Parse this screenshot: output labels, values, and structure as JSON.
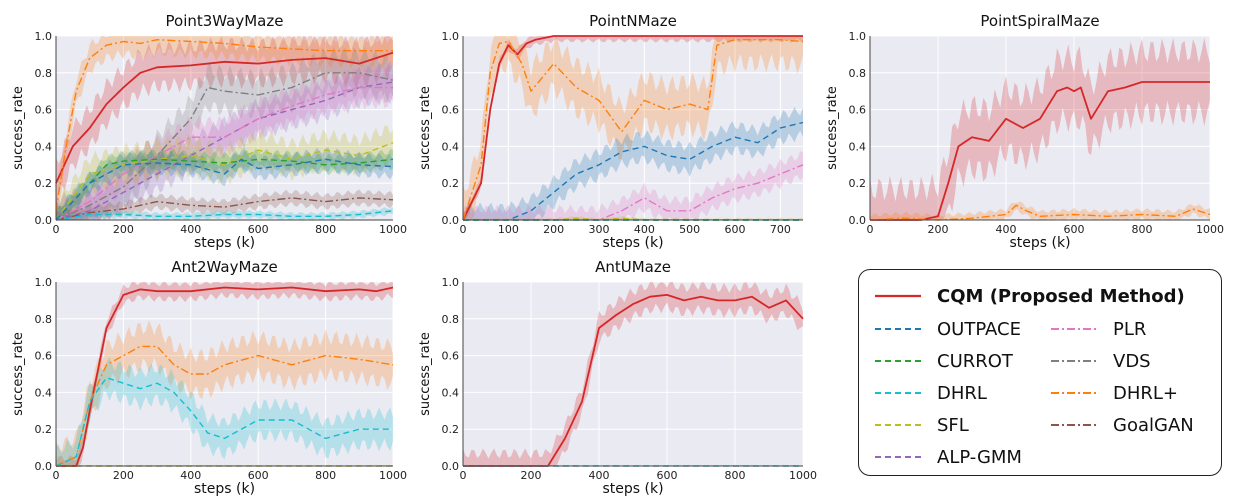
{
  "chart_data": [
    {
      "type": "line",
      "title": "Point3WayMaze",
      "xlabel": "steps (k)",
      "ylabel": "success_rate",
      "xlim": [
        0,
        1000
      ],
      "ylim": [
        0,
        1.0
      ],
      "xticks": [
        0,
        200,
        400,
        600,
        800,
        1000
      ],
      "yticks": [
        0.0,
        0.2,
        0.4,
        0.6,
        0.8,
        1.0
      ],
      "show_ylabel": true,
      "grid": true,
      "series": [
        {
          "name": "CQM (Proposed Method)",
          "x": [
            0,
            50,
            100,
            150,
            200,
            250,
            300,
            400,
            500,
            600,
            700,
            800,
            900,
            1000
          ],
          "y": [
            0.2,
            0.4,
            0.5,
            0.63,
            0.72,
            0.8,
            0.83,
            0.84,
            0.86,
            0.85,
            0.87,
            0.88,
            0.85,
            0.91
          ],
          "band": 0.12
        },
        {
          "name": "DHRL+",
          "x": [
            0,
            30,
            60,
            100,
            150,
            200,
            250,
            300,
            400,
            500,
            600,
            700,
            800,
            900,
            1000
          ],
          "y": [
            0.05,
            0.4,
            0.7,
            0.88,
            0.95,
            0.97,
            0.96,
            0.98,
            0.97,
            0.96,
            0.94,
            0.93,
            0.92,
            0.92,
            0.92
          ],
          "band": 0.08
        },
        {
          "name": "VDS",
          "x": [
            0,
            100,
            200,
            300,
            400,
            450,
            500,
            600,
            700,
            800,
            900,
            1000
          ],
          "y": [
            0,
            0.08,
            0.18,
            0.35,
            0.55,
            0.72,
            0.7,
            0.68,
            0.72,
            0.8,
            0.8,
            0.76
          ],
          "band": 0.12
        },
        {
          "name": "ALP-GMM",
          "x": [
            0,
            100,
            200,
            300,
            400,
            500,
            600,
            700,
            800,
            900,
            1000
          ],
          "y": [
            0,
            0.05,
            0.15,
            0.25,
            0.35,
            0.45,
            0.55,
            0.6,
            0.65,
            0.72,
            0.75
          ],
          "band": 0.1
        },
        {
          "name": "PLR",
          "x": [
            0,
            100,
            200,
            300,
            400,
            500,
            600,
            700,
            800,
            900,
            1000
          ],
          "y": [
            0,
            0.1,
            0.25,
            0.35,
            0.45,
            0.45,
            0.55,
            0.62,
            0.68,
            0.72,
            0.72
          ],
          "band": 0.1
        },
        {
          "name": "SFL",
          "x": [
            0,
            100,
            200,
            300,
            400,
            500,
            600,
            700,
            800,
            900,
            1000
          ],
          "y": [
            0,
            0.25,
            0.3,
            0.33,
            0.35,
            0.3,
            0.38,
            0.33,
            0.38,
            0.35,
            0.42
          ],
          "band": 0.1
        },
        {
          "name": "CURROT",
          "x": [
            0,
            100,
            150,
            200,
            300,
            400,
            500,
            600,
            700,
            800,
            900,
            1000
          ],
          "y": [
            0,
            0.2,
            0.3,
            0.32,
            0.33,
            0.32,
            0.31,
            0.33,
            0.32,
            0.3,
            0.31,
            0.33
          ],
          "band": 0.05
        },
        {
          "name": "OUTPACE",
          "x": [
            0,
            100,
            200,
            300,
            400,
            500,
            550,
            600,
            700,
            800,
            900,
            1000
          ],
          "y": [
            0,
            0.2,
            0.3,
            0.31,
            0.3,
            0.25,
            0.33,
            0.28,
            0.3,
            0.33,
            0.3,
            0.29
          ],
          "band": 0.06
        },
        {
          "name": "GoalGAN",
          "x": [
            0,
            100,
            200,
            300,
            400,
            500,
            600,
            700,
            800,
            900,
            1000
          ],
          "y": [
            0,
            0.04,
            0.06,
            0.1,
            0.08,
            0.07,
            0.1,
            0.12,
            0.1,
            0.12,
            0.11
          ],
          "band": 0.04
        },
        {
          "name": "DHRL",
          "x": [
            0,
            100,
            200,
            300,
            400,
            500,
            600,
            700,
            800,
            900,
            1000
          ],
          "y": [
            0,
            0.03,
            0.03,
            0.02,
            0.02,
            0.03,
            0.03,
            0.02,
            0.02,
            0.03,
            0.05
          ],
          "band": 0.02
        }
      ]
    },
    {
      "type": "line",
      "title": "PointNMaze",
      "xlabel": "steps (k)",
      "ylabel": "success_rate",
      "xlim": [
        0,
        750
      ],
      "ylim": [
        0,
        1.0
      ],
      "xticks": [
        0,
        100,
        200,
        300,
        400,
        500,
        600,
        700
      ],
      "yticks": [
        0.0,
        0.2,
        0.4,
        0.6,
        0.8,
        1.0
      ],
      "show_ylabel": true,
      "grid": true,
      "series": [
        {
          "name": "CQM (Proposed Method)",
          "x": [
            0,
            40,
            60,
            80,
            100,
            120,
            140,
            160,
            200,
            300,
            400,
            500,
            600,
            700,
            750
          ],
          "y": [
            0,
            0.2,
            0.6,
            0.85,
            0.95,
            0.9,
            0.96,
            0.98,
            1.0,
            1.0,
            1.0,
            1.0,
            1.0,
            1.0,
            1.0
          ],
          "band": 0.03
        },
        {
          "name": "DHRL+",
          "x": [
            0,
            40,
            60,
            80,
            100,
            130,
            150,
            200,
            250,
            300,
            350,
            400,
            450,
            500,
            540,
            560,
            600,
            700,
            750
          ],
          "y": [
            0,
            0.3,
            0.8,
            0.96,
            0.97,
            0.85,
            0.7,
            0.85,
            0.72,
            0.65,
            0.48,
            0.65,
            0.6,
            0.63,
            0.6,
            0.95,
            0.98,
            0.98,
            0.97
          ],
          "band": 0.15
        },
        {
          "name": "OUTPACE",
          "x": [
            0,
            100,
            150,
            200,
            250,
            300,
            350,
            400,
            450,
            500,
            550,
            600,
            650,
            700,
            750
          ],
          "y": [
            0,
            0,
            0.05,
            0.15,
            0.25,
            0.3,
            0.37,
            0.4,
            0.35,
            0.33,
            0.4,
            0.45,
            0.42,
            0.5,
            0.53
          ],
          "band": 0.08
        },
        {
          "name": "PLR",
          "x": [
            0,
            300,
            350,
            400,
            450,
            500,
            550,
            600,
            650,
            700,
            750
          ],
          "y": [
            0,
            0,
            0.05,
            0.12,
            0.05,
            0.05,
            0.12,
            0.17,
            0.2,
            0.25,
            0.3
          ],
          "band": 0.07
        },
        {
          "name": "SFL",
          "x": [
            0,
            200,
            250,
            300,
            350,
            400,
            750
          ],
          "y": [
            0,
            0,
            0.01,
            0,
            0.01,
            0,
            0
          ],
          "band": 0.01
        },
        {
          "name": "CURROT",
          "x": [
            0,
            750
          ],
          "y": [
            0,
            0
          ],
          "band": 0.005
        },
        {
          "name": "DHRL",
          "x": [
            0,
            750
          ],
          "y": [
            0,
            0
          ],
          "band": 0.005
        }
      ]
    },
    {
      "type": "line",
      "title": "PointSpiralMaze",
      "xlabel": "steps (k)",
      "ylabel": "success_rate",
      "xlim": [
        0,
        1000
      ],
      "ylim": [
        0,
        1.0
      ],
      "xticks": [
        0,
        200,
        400,
        600,
        800,
        1000
      ],
      "yticks": [
        0.0,
        0.2,
        0.4,
        0.6,
        0.8,
        1.0
      ],
      "show_ylabel": true,
      "grid": true,
      "series": [
        {
          "name": "CQM (Proposed Method)",
          "x": [
            0,
            150,
            200,
            230,
            260,
            300,
            350,
            400,
            450,
            500,
            550,
            580,
            600,
            620,
            650,
            700,
            750,
            800,
            900,
            1000
          ],
          "y": [
            0,
            0,
            0.02,
            0.2,
            0.4,
            0.45,
            0.43,
            0.55,
            0.5,
            0.55,
            0.7,
            0.72,
            0.7,
            0.72,
            0.55,
            0.7,
            0.72,
            0.75,
            0.75,
            0.75
          ],
          "band": 0.2
        },
        {
          "name": "DHRL+",
          "x": [
            0,
            100,
            200,
            300,
            400,
            430,
            460,
            500,
            600,
            700,
            800,
            900,
            950,
            1000
          ],
          "y": [
            0,
            0.01,
            0,
            0.01,
            0.03,
            0.08,
            0.05,
            0.02,
            0.03,
            0.02,
            0.03,
            0.02,
            0.06,
            0.03
          ],
          "band": 0.03
        }
      ]
    },
    {
      "type": "line",
      "title": "Ant2WayMaze",
      "xlabel": "steps (k)",
      "ylabel": "success_rate",
      "xlim": [
        0,
        1000
      ],
      "ylim": [
        0,
        1.0
      ],
      "xticks": [
        0,
        200,
        400,
        600,
        800,
        1000
      ],
      "yticks": [
        0.0,
        0.2,
        0.4,
        0.6,
        0.8,
        1.0
      ],
      "show_ylabel": true,
      "grid": true,
      "series": [
        {
          "name": "CQM (Proposed Method)",
          "x": [
            0,
            60,
            80,
            100,
            150,
            200,
            250,
            300,
            400,
            500,
            600,
            700,
            800,
            900,
            950,
            1000
          ],
          "y": [
            0,
            0,
            0.1,
            0.3,
            0.75,
            0.93,
            0.96,
            0.95,
            0.95,
            0.97,
            0.96,
            0.97,
            0.95,
            0.96,
            0.95,
            0.97
          ],
          "band": 0.05
        },
        {
          "name": "DHRL+",
          "x": [
            0,
            60,
            100,
            150,
            200,
            250,
            300,
            350,
            400,
            450,
            500,
            600,
            700,
            800,
            900,
            1000
          ],
          "y": [
            0,
            0.05,
            0.35,
            0.55,
            0.6,
            0.65,
            0.65,
            0.55,
            0.5,
            0.5,
            0.55,
            0.6,
            0.55,
            0.6,
            0.58,
            0.55
          ],
          "band": 0.12
        },
        {
          "name": "DHRL",
          "x": [
            0,
            60,
            100,
            150,
            200,
            250,
            300,
            350,
            400,
            450,
            500,
            600,
            700,
            800,
            900,
            1000
          ],
          "y": [
            0,
            0.05,
            0.35,
            0.48,
            0.45,
            0.42,
            0.45,
            0.4,
            0.3,
            0.18,
            0.15,
            0.25,
            0.25,
            0.15,
            0.2,
            0.2
          ],
          "band": 0.1
        },
        {
          "name": "SFL",
          "x": [
            0,
            1000
          ],
          "y": [
            0,
            0
          ],
          "band": 0.005
        }
      ]
    },
    {
      "type": "line",
      "title": "AntUMaze",
      "xlabel": "steps (k)",
      "ylabel": "success_rate",
      "xlim": [
        0,
        1000
      ],
      "ylim": [
        0,
        1.0
      ],
      "xticks": [
        0,
        200,
        400,
        600,
        800,
        1000
      ],
      "yticks": [
        0.0,
        0.2,
        0.4,
        0.6,
        0.8,
        1.0
      ],
      "show_ylabel": true,
      "grid": true,
      "series": [
        {
          "name": "CQM (Proposed Method)",
          "x": [
            0,
            250,
            300,
            350,
            400,
            450,
            500,
            550,
            600,
            650,
            700,
            750,
            800,
            850,
            900,
            950,
            1000
          ],
          "y": [
            0,
            0,
            0.15,
            0.35,
            0.75,
            0.82,
            0.88,
            0.92,
            0.93,
            0.9,
            0.92,
            0.9,
            0.9,
            0.92,
            0.86,
            0.9,
            0.8
          ],
          "band": 0.08
        },
        {
          "name": "DHRL",
          "x": [
            0,
            1000
          ],
          "y": [
            0,
            0
          ],
          "band": 0.005
        }
      ]
    }
  ],
  "legend": {
    "entries": [
      {
        "name": "CQM (Proposed Method)",
        "color": "#d62728",
        "dash": "solid",
        "bold": true
      },
      {
        "name": "OUTPACE",
        "color": "#1f77b4",
        "dash": "dashed"
      },
      {
        "name": "PLR",
        "color": "#e377c2",
        "dash": "dashdot"
      },
      {
        "name": "CURROT",
        "color": "#2ca02c",
        "dash": "dashed"
      },
      {
        "name": "VDS",
        "color": "#7f7f7f",
        "dash": "dashdot"
      },
      {
        "name": "DHRL",
        "color": "#17becf",
        "dash": "dashed"
      },
      {
        "name": "DHRL+",
        "color": "#ff7f0e",
        "dash": "dashdot"
      },
      {
        "name": "SFL",
        "color": "#bcbd22",
        "dash": "dashed"
      },
      {
        "name": "GoalGAN",
        "color": "#8c564b",
        "dash": "dashdot"
      },
      {
        "name": "ALP-GMM",
        "color": "#9467bd",
        "dash": "dashed"
      }
    ]
  },
  "style": {
    "plot_background": "#eaeaf2",
    "grid_color": "#ffffff",
    "axis_text_color": "#222222"
  }
}
